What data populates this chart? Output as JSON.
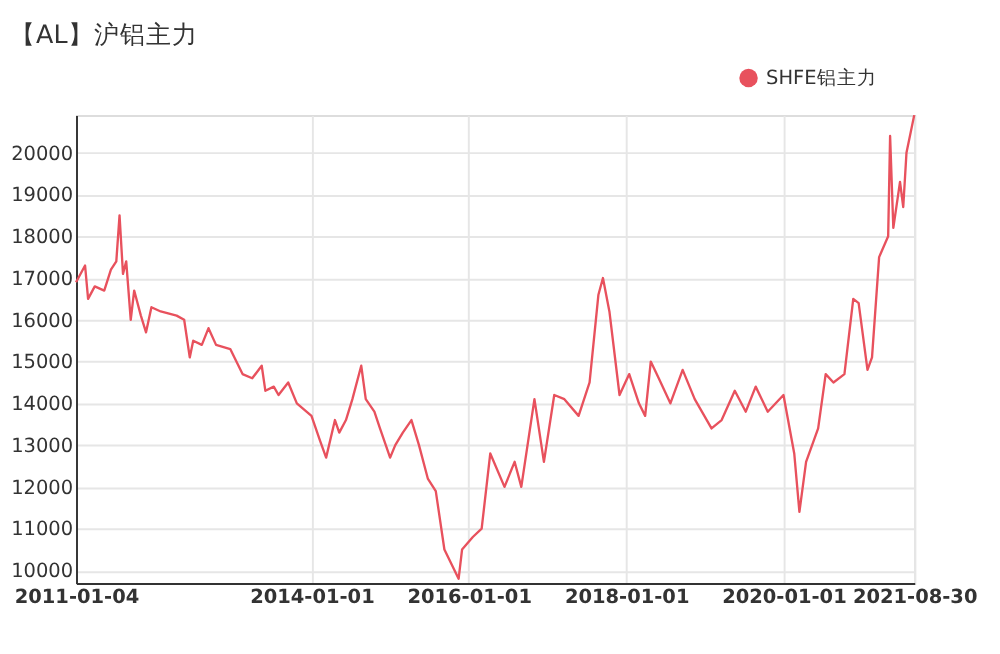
{
  "chart_data": {
    "type": "line",
    "title": "【AL】沪铝主力",
    "x": [
      "2011-01-04",
      "2011-02-15",
      "2011-03-01",
      "2011-04-01",
      "2011-05-15",
      "2011-06-15",
      "2011-07-10",
      "2011-07-25",
      "2011-08-10",
      "2011-08-25",
      "2011-09-15",
      "2011-10-01",
      "2011-11-01",
      "2011-11-25",
      "2011-12-20",
      "2012-02-01",
      "2012-04-15",
      "2012-05-20",
      "2012-06-15",
      "2012-07-01",
      "2012-08-10",
      "2012-09-10",
      "2012-10-15",
      "2012-12-20",
      "2013-02-15",
      "2013-04-01",
      "2013-05-15",
      "2013-06-01",
      "2013-07-10",
      "2013-08-01",
      "2013-09-15",
      "2013-10-25",
      "2014-01-01",
      "2014-02-10",
      "2014-03-10",
      "2014-04-20",
      "2014-05-10",
      "2014-06-10",
      "2014-07-10",
      "2014-08-20",
      "2014-09-10",
      "2014-10-20",
      "2014-11-15",
      "2015-01-01",
      "2015-01-25",
      "2015-03-01",
      "2015-04-10",
      "2015-05-15",
      "2015-06-25",
      "2015-08-01",
      "2015-09-10",
      "2015-11-15",
      "2015-12-01",
      "2016-01-20",
      "2016-03-01",
      "2016-04-10",
      "2016-06-15",
      "2016-08-01",
      "2016-09-01",
      "2016-11-01",
      "2016-12-15",
      "2017-02-01",
      "2017-03-20",
      "2017-05-25",
      "2017-07-15",
      "2017-08-25",
      "2017-09-15",
      "2017-10-15",
      "2017-12-01",
      "2018-01-15",
      "2018-03-01",
      "2018-03-30",
      "2018-04-25",
      "2018-06-01",
      "2018-07-25",
      "2018-09-20",
      "2018-11-15",
      "2019-02-01",
      "2019-03-20",
      "2019-05-20",
      "2019-07-10",
      "2019-08-25",
      "2019-10-20",
      "2020-01-01",
      "2020-02-20",
      "2020-03-15",
      "2020-04-15",
      "2020-06-10",
      "2020-07-15",
      "2020-08-20",
      "2020-10-10",
      "2020-11-20",
      "2020-12-15",
      "2021-01-25",
      "2021-02-15",
      "2021-03-20",
      "2021-05-01",
      "2021-05-10",
      "2021-05-25",
      "2021-06-25",
      "2021-07-10",
      "2021-07-25",
      "2021-08-30"
    ],
    "series": [
      {
        "name": "SHFE铝主力",
        "color": "#e8515d",
        "values": [
          16900,
          17300,
          16500,
          16800,
          16700,
          17200,
          17400,
          18500,
          17100,
          17400,
          16000,
          16700,
          16100,
          15700,
          16300,
          16200,
          16100,
          16000,
          15100,
          15500,
          15400,
          15800,
          15400,
          15300,
          14700,
          14600,
          14900,
          14300,
          14400,
          14200,
          14500,
          14000,
          13700,
          13100,
          12700,
          13600,
          13300,
          13600,
          14100,
          14900,
          14100,
          13800,
          13400,
          12700,
          13000,
          13300,
          13600,
          13000,
          12200,
          11900,
          10500,
          9800,
          10500,
          10800,
          11000,
          12800,
          12000,
          12600,
          12000,
          14100,
          12600,
          14200,
          14100,
          13700,
          14500,
          16600,
          17000,
          16200,
          14200,
          14700,
          14000,
          13700,
          15000,
          14600,
          14000,
          14800,
          14100,
          13400,
          13600,
          14300,
          13800,
          14400,
          13800,
          14200,
          12800,
          11400,
          12600,
          13400,
          14700,
          14500,
          14700,
          16500,
          16400,
          14800,
          15100,
          17500,
          18000,
          20400,
          18200,
          19300,
          18700,
          20000,
          20900
        ]
      }
    ],
    "ylim": [
      9700,
      20900
    ],
    "yticks": [
      10000,
      11000,
      12000,
      13000,
      14000,
      15000,
      16000,
      17000,
      18000,
      19000,
      20000
    ],
    "xlim": [
      "2011-01-04",
      "2021-08-30"
    ],
    "xticks": [
      "2011-01-04",
      "2014-01-01",
      "2016-01-01",
      "2018-01-01",
      "2020-01-01",
      "2021-08-30"
    ],
    "grid": true,
    "legend": "top right",
    "marker": "none",
    "line_style": "solid"
  }
}
